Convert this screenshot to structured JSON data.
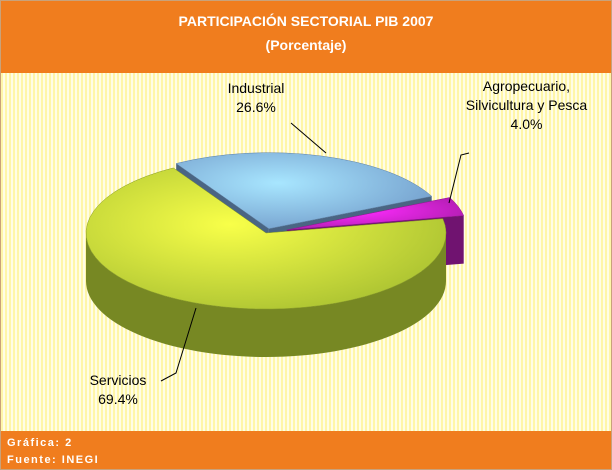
{
  "chart_data": {
    "type": "pie",
    "title": "PARTICIPACIÓN SECTORIAL PIB 2007",
    "subtitle": "(Porcentaje)",
    "categories": [
      "Industrial",
      "Agropecuario, Silvicultura y Pesca",
      "Servicios"
    ],
    "values": [
      26.6,
      4.0,
      69.4
    ],
    "value_labels": [
      "26.6%",
      "4.0%",
      "69.4%"
    ],
    "colors": [
      "#86b8ee",
      "#cc22cc",
      "#c6e23a"
    ]
  },
  "footer": [
    "Gráfica: 2",
    "Fuente: INEGI"
  ]
}
